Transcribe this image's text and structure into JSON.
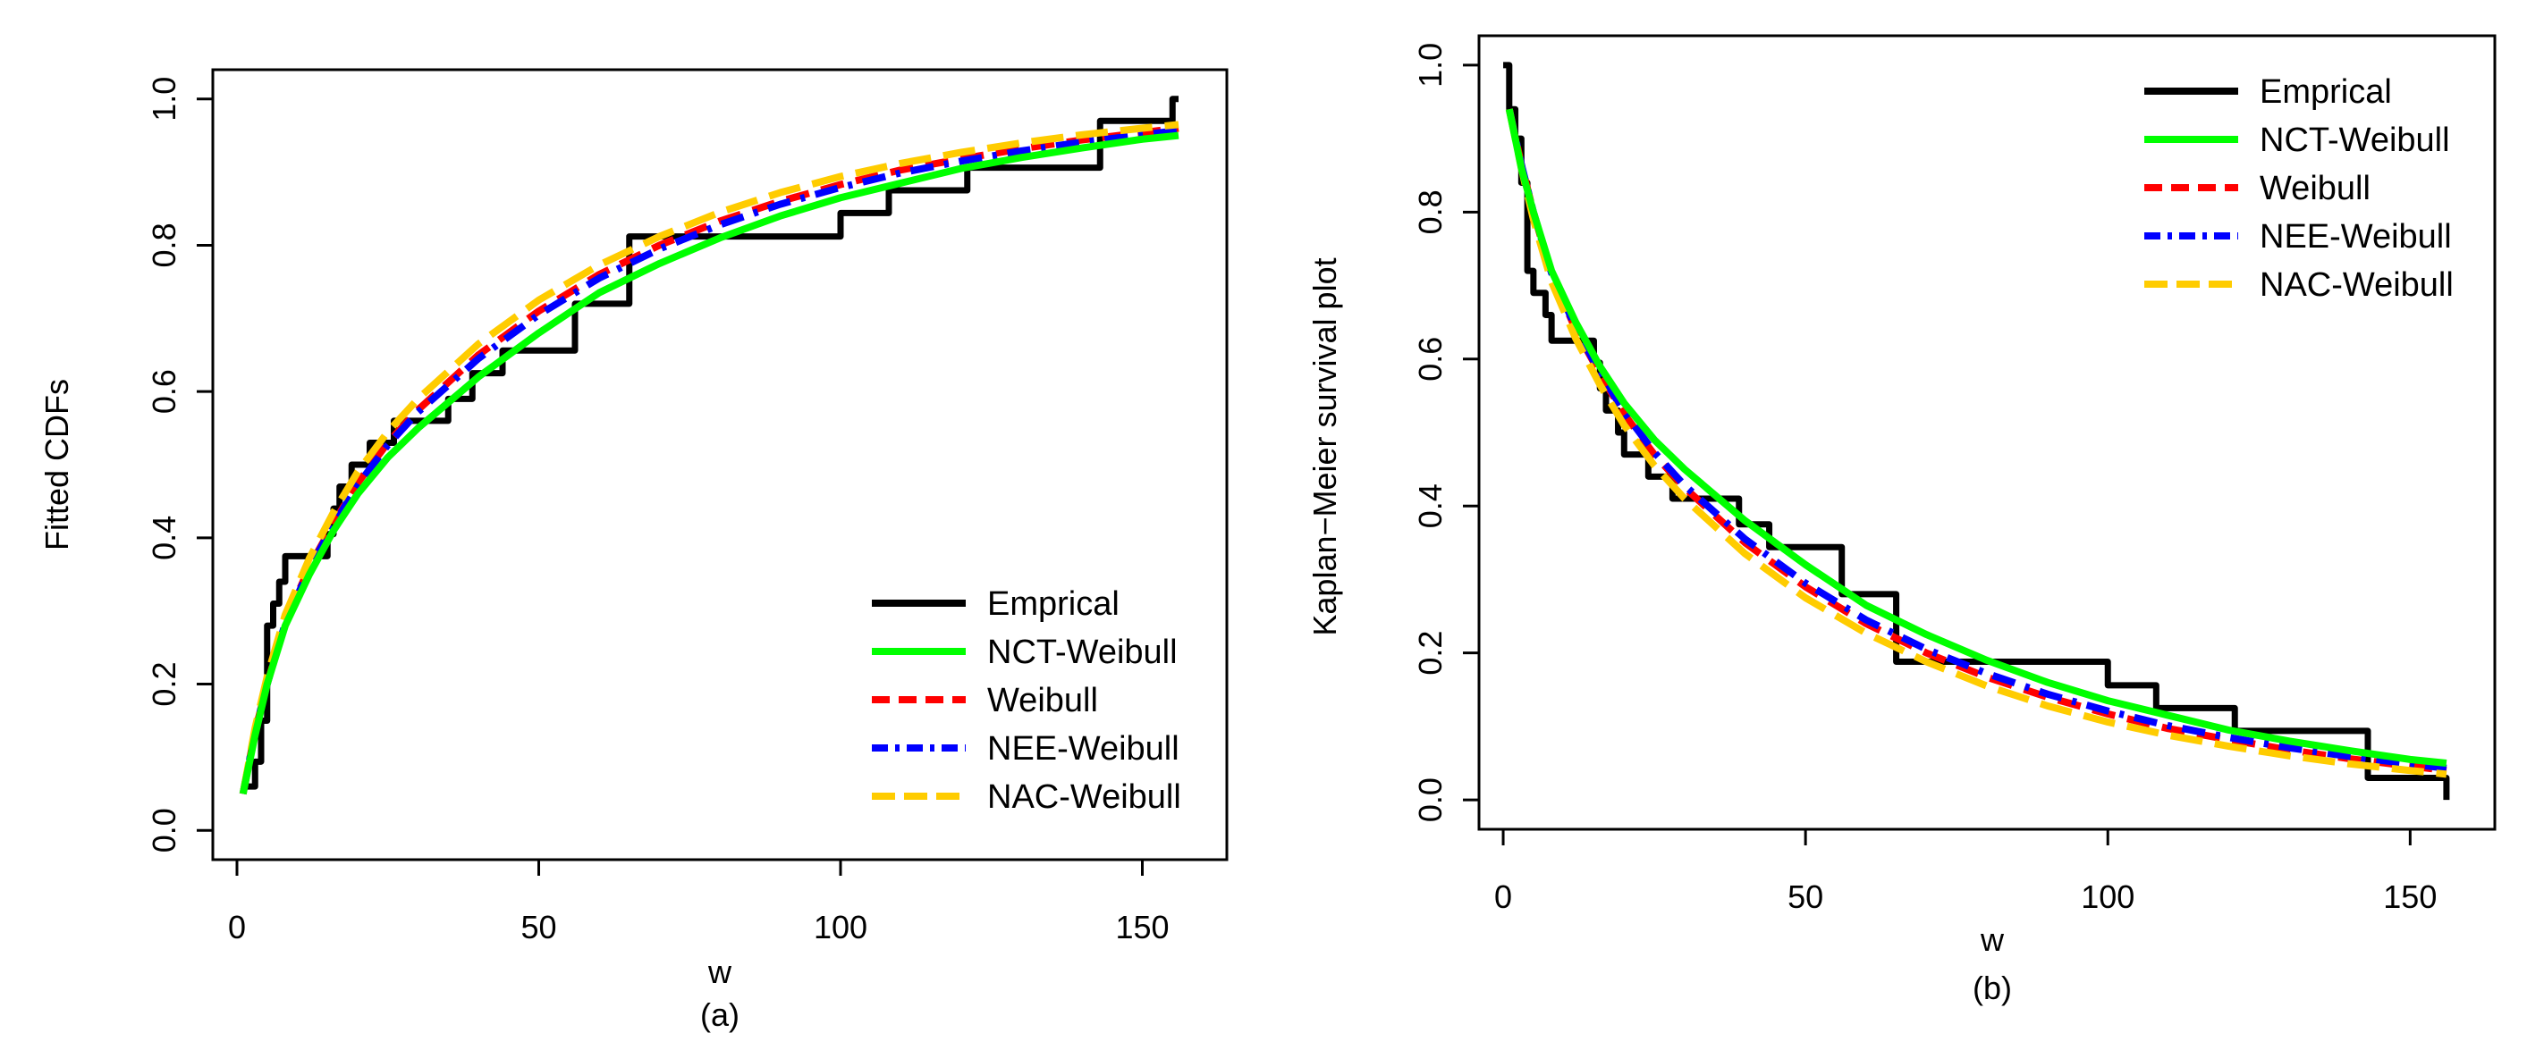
{
  "chart_data": [
    {
      "type": "line",
      "panel": "a",
      "caption": "(a)",
      "xlabel": "w",
      "ylabel": "Fitted CDFs",
      "xlim": [
        -4,
        164
      ],
      "ylim": [
        -0.04,
        1.04
      ],
      "xticks": [
        0,
        50,
        100,
        150
      ],
      "xtick_labels": [
        "0",
        "50",
        "100",
        "150"
      ],
      "yticks": [
        0.0,
        0.2,
        0.4,
        0.6,
        0.8,
        1.0
      ],
      "ytick_labels": [
        "0.0",
        "0.2",
        "0.4",
        "0.6",
        "0.8",
        "1.0"
      ],
      "legend_position": "bottom-right",
      "series": [
        {
          "name": "Emprical",
          "color": "#000000",
          "style": "solid",
          "kind": "step",
          "x": [
            1,
            3,
            4,
            5,
            6,
            7,
            8,
            15,
            16,
            17,
            19,
            20,
            22,
            24,
            26,
            27,
            28,
            35,
            38,
            39,
            42,
            44,
            45,
            56,
            65,
            66,
            100,
            101,
            108,
            109,
            121,
            122,
            134,
            135,
            143,
            144,
            155,
            156
          ],
          "y": [
            0.06,
            0.094,
            0.15,
            0.28,
            0.31,
            0.34,
            0.375,
            0.405,
            0.44,
            0.47,
            0.5,
            0.5,
            0.53,
            0.53,
            0.56,
            0.56,
            0.56,
            0.59,
            0.59,
            0.625,
            0.625,
            0.656,
            0.656,
            0.72,
            0.812,
            0.812,
            0.844,
            0.844,
            0.875,
            0.875,
            0.906,
            0.906,
            0.906,
            0.906,
            0.97,
            0.97,
            1.0,
            1.0
          ]
        },
        {
          "name": "NCT-Weibull",
          "color": "#00ff00",
          "style": "solid",
          "kind": "line",
          "x": [
            1,
            3,
            5,
            8,
            12,
            16,
            20,
            25,
            30,
            40,
            50,
            60,
            70,
            80,
            90,
            100,
            110,
            120,
            130,
            140,
            150,
            156
          ],
          "y": [
            0.05,
            0.13,
            0.2,
            0.28,
            0.35,
            0.41,
            0.46,
            0.51,
            0.55,
            0.62,
            0.68,
            0.735,
            0.775,
            0.81,
            0.84,
            0.865,
            0.885,
            0.905,
            0.92,
            0.933,
            0.945,
            0.95
          ]
        },
        {
          "name": "Weibull",
          "color": "#ff0000",
          "style": "dashed",
          "kind": "line",
          "x": [
            1,
            3,
            5,
            8,
            12,
            16,
            20,
            25,
            30,
            40,
            50,
            60,
            70,
            80,
            90,
            100,
            110,
            120,
            130,
            140,
            150,
            156
          ],
          "y": [
            0.05,
            0.135,
            0.2,
            0.285,
            0.36,
            0.42,
            0.475,
            0.53,
            0.575,
            0.65,
            0.71,
            0.76,
            0.8,
            0.833,
            0.86,
            0.883,
            0.903,
            0.918,
            0.932,
            0.944,
            0.954,
            0.96
          ]
        },
        {
          "name": "NEE-Weibull",
          "color": "#0000ff",
          "style": "dashdot",
          "kind": "line",
          "x": [
            1,
            3,
            5,
            8,
            12,
            16,
            20,
            25,
            30,
            40,
            50,
            60,
            70,
            80,
            90,
            100,
            110,
            120,
            130,
            140,
            150,
            156
          ],
          "y": [
            0.05,
            0.135,
            0.2,
            0.283,
            0.358,
            0.418,
            0.472,
            0.527,
            0.572,
            0.645,
            0.705,
            0.755,
            0.795,
            0.828,
            0.856,
            0.879,
            0.899,
            0.915,
            0.929,
            0.941,
            0.951,
            0.957
          ]
        },
        {
          "name": "NAC-Weibull",
          "color": "#ffcc00",
          "style": "longdash",
          "kind": "line",
          "x": [
            1,
            3,
            5,
            8,
            12,
            16,
            20,
            25,
            30,
            40,
            50,
            60,
            70,
            80,
            90,
            100,
            110,
            120,
            130,
            140,
            150,
            156
          ],
          "y": [
            0.05,
            0.14,
            0.21,
            0.295,
            0.372,
            0.435,
            0.49,
            0.545,
            0.59,
            0.665,
            0.725,
            0.773,
            0.812,
            0.845,
            0.872,
            0.894,
            0.912,
            0.927,
            0.94,
            0.951,
            0.96,
            0.965
          ]
        }
      ]
    },
    {
      "type": "line",
      "panel": "b",
      "caption": "(b)",
      "xlabel": "w",
      "ylabel": "Kaplan−Meier survival plot",
      "xlim": [
        -4,
        164
      ],
      "ylim": [
        -0.04,
        1.04
      ],
      "xticks": [
        0,
        50,
        100,
        150
      ],
      "xtick_labels": [
        "0",
        "50",
        "100",
        "150"
      ],
      "yticks": [
        0.0,
        0.2,
        0.4,
        0.6,
        0.8,
        1.0
      ],
      "ytick_labels": [
        "0.0",
        "0.2",
        "0.4",
        "0.6",
        "0.8",
        "1.0"
      ],
      "legend_position": "top-right",
      "series": [
        {
          "name": "Emprical",
          "color": "#000000",
          "style": "solid",
          "kind": "step",
          "x": [
            0,
            1,
            2,
            3,
            4,
            5,
            6,
            7,
            8,
            15,
            16,
            17,
            19,
            20,
            22,
            24,
            26,
            27,
            28,
            35,
            38,
            39,
            42,
            44,
            45,
            56,
            65,
            66,
            100,
            101,
            108,
            109,
            121,
            122,
            134,
            135,
            143,
            144,
            155,
            156
          ],
          "y": [
            1.0,
            0.94,
            0.9,
            0.84,
            0.72,
            0.69,
            0.69,
            0.66,
            0.625,
            0.595,
            0.56,
            0.53,
            0.5,
            0.47,
            0.47,
            0.44,
            0.44,
            0.44,
            0.41,
            0.41,
            0.41,
            0.375,
            0.375,
            0.344,
            0.344,
            0.28,
            0.188,
            0.188,
            0.156,
            0.156,
            0.125,
            0.125,
            0.094,
            0.094,
            0.094,
            0.094,
            0.03,
            0.03,
            0.03,
            0.0
          ]
        },
        {
          "name": "NCT-Weibull",
          "color": "#00ff00",
          "style": "solid",
          "kind": "line",
          "x": [
            1,
            3,
            5,
            8,
            12,
            16,
            20,
            25,
            30,
            40,
            50,
            60,
            70,
            80,
            90,
            100,
            110,
            120,
            130,
            140,
            150,
            156
          ],
          "y": [
            0.94,
            0.86,
            0.8,
            0.72,
            0.65,
            0.59,
            0.54,
            0.49,
            0.45,
            0.38,
            0.32,
            0.265,
            0.225,
            0.19,
            0.16,
            0.135,
            0.115,
            0.095,
            0.08,
            0.067,
            0.055,
            0.05
          ]
        },
        {
          "name": "Weibull",
          "color": "#ff0000",
          "style": "dashed",
          "kind": "line",
          "x": [
            1,
            3,
            5,
            8,
            12,
            16,
            20,
            25,
            30,
            40,
            50,
            60,
            70,
            80,
            90,
            100,
            110,
            120,
            130,
            140,
            150,
            156
          ],
          "y": [
            0.94,
            0.865,
            0.8,
            0.715,
            0.64,
            0.58,
            0.525,
            0.47,
            0.425,
            0.35,
            0.29,
            0.24,
            0.2,
            0.167,
            0.14,
            0.117,
            0.097,
            0.082,
            0.068,
            0.056,
            0.046,
            0.04
          ]
        },
        {
          "name": "NEE-Weibull",
          "color": "#0000ff",
          "style": "dashdot",
          "kind": "line",
          "x": [
            1,
            3,
            5,
            8,
            12,
            16,
            20,
            25,
            30,
            40,
            50,
            60,
            70,
            80,
            90,
            100,
            110,
            120,
            130,
            140,
            150,
            156
          ],
          "y": [
            0.94,
            0.865,
            0.8,
            0.717,
            0.642,
            0.582,
            0.528,
            0.473,
            0.428,
            0.355,
            0.295,
            0.245,
            0.205,
            0.172,
            0.144,
            0.121,
            0.101,
            0.085,
            0.071,
            0.059,
            0.049,
            0.043
          ]
        },
        {
          "name": "NAC-Weibull",
          "color": "#ffcc00",
          "style": "longdash",
          "kind": "line",
          "x": [
            1,
            3,
            5,
            8,
            12,
            16,
            20,
            25,
            30,
            40,
            50,
            60,
            70,
            80,
            90,
            100,
            110,
            120,
            130,
            140,
            150,
            156
          ],
          "y": [
            0.94,
            0.86,
            0.79,
            0.705,
            0.628,
            0.565,
            0.51,
            0.455,
            0.41,
            0.335,
            0.275,
            0.227,
            0.188,
            0.155,
            0.128,
            0.106,
            0.088,
            0.073,
            0.06,
            0.049,
            0.04,
            0.035
          ]
        }
      ]
    }
  ]
}
